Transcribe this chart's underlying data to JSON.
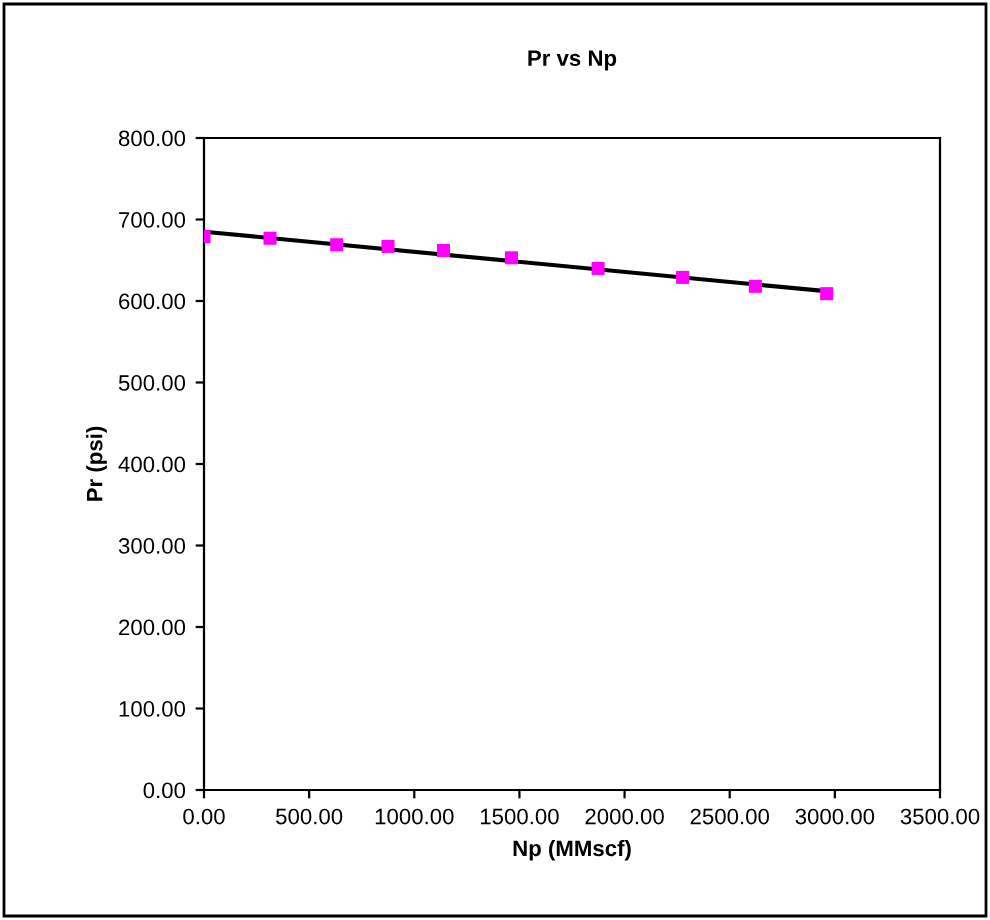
{
  "chart_data": {
    "type": "scatter",
    "title": "Pr vs Np",
    "xlabel": "Np (MMscf)",
    "ylabel": "Pr (psi)",
    "series": [
      {
        "color": "#ff00ff",
        "marker": "square",
        "x": [
          0,
          314,
          631,
          875,
          1139,
          1462,
          1874,
          2276,
          2622,
          2961
        ],
        "values": [
          679,
          677,
          669,
          667,
          662,
          653,
          640,
          629,
          618,
          609
        ]
      },
      {
        "type": "line",
        "color": "#000000",
        "marker": "none",
        "x": [
          0,
          2961
        ],
        "values": [
          685,
          612
        ]
      }
    ],
    "xlim": [
      0,
      3500
    ],
    "xticks": [
      {
        "value": 0,
        "label": "0.00"
      },
      {
        "value": 500,
        "label": "500.00"
      },
      {
        "value": 1000,
        "label": "1000.00"
      },
      {
        "value": 1500,
        "label": "1500.00"
      },
      {
        "value": 2000,
        "label": "2000.00"
      },
      {
        "value": 2500,
        "label": "2500.00"
      },
      {
        "value": 3000,
        "label": "3000.00"
      },
      {
        "value": 3500,
        "label": "3500.00"
      }
    ],
    "ylim": [
      0,
      800
    ],
    "yticks": [
      {
        "value": 0,
        "label": "0.00"
      },
      {
        "value": 100,
        "label": "100.00"
      },
      {
        "value": 200,
        "label": "200.00"
      },
      {
        "value": 300,
        "label": "300.00"
      },
      {
        "value": 400,
        "label": "400.00"
      },
      {
        "value": 500,
        "label": "500.00"
      },
      {
        "value": 600,
        "label": "600.00"
      },
      {
        "value": 700,
        "label": "700.00"
      },
      {
        "value": 800,
        "label": "800.00"
      }
    ],
    "grid": false
  }
}
